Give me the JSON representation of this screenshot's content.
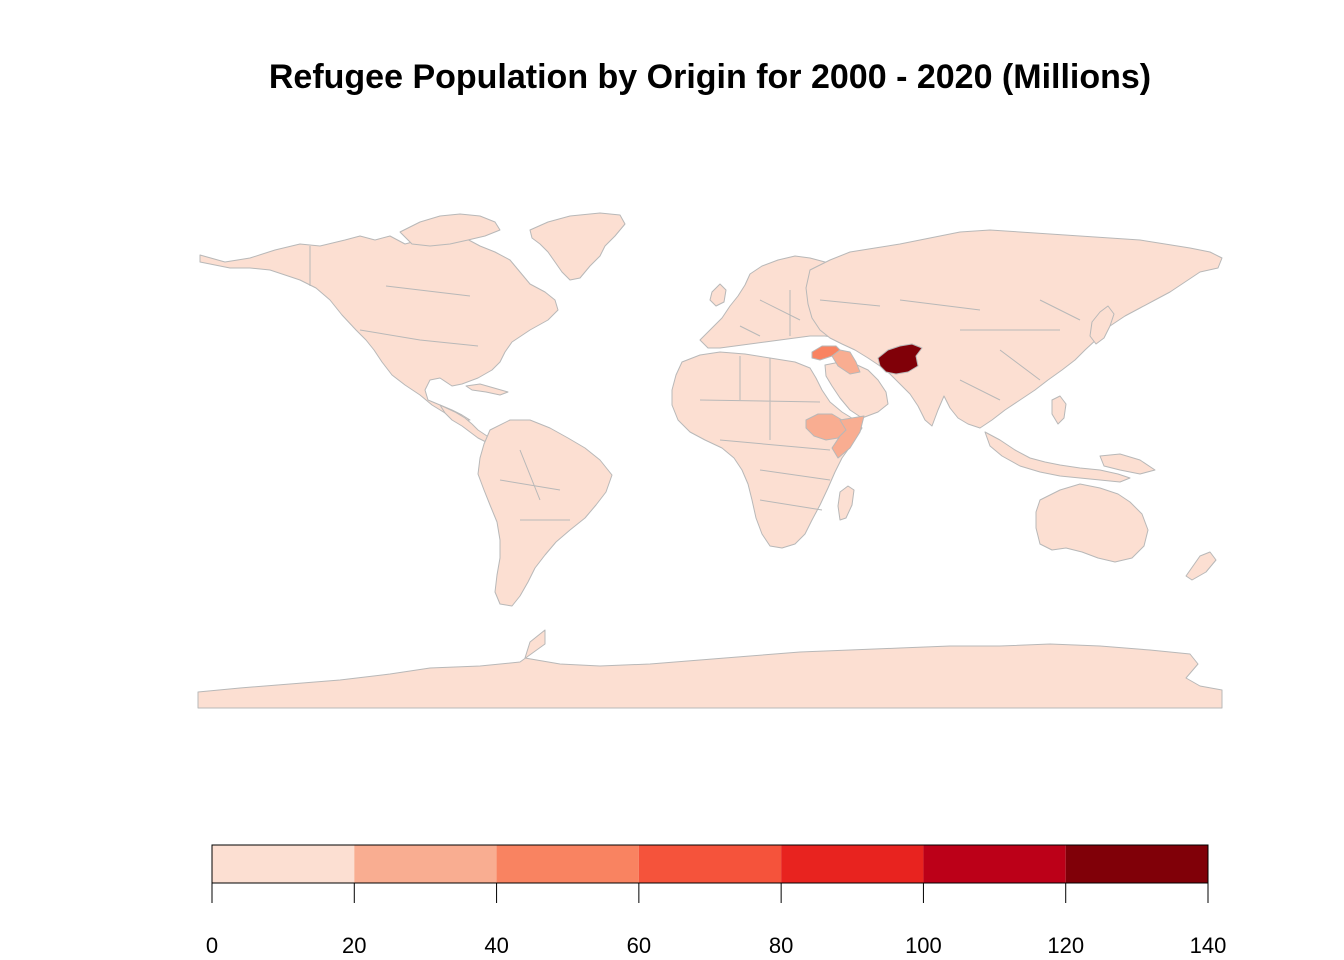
{
  "title": "Refugee Population by Origin for 2000 - 2020 (Millions)",
  "map": {
    "base_color": "#fcdfd2",
    "border_color": "#b8b8b8",
    "highlighted_regions": [
      {
        "name": "Afghanistan",
        "bin": "120-140",
        "color": "#800008"
      },
      {
        "name": "Syria",
        "bin": "40-60",
        "color": "#f98361"
      },
      {
        "name": "Iraq",
        "bin": "20-40",
        "color": "#f9ad91"
      },
      {
        "name": "Ethiopia",
        "bin": "20-40",
        "color": "#f9ad91"
      },
      {
        "name": "Somalia",
        "bin": "20-40",
        "color": "#f9ad91"
      }
    ]
  },
  "legend": {
    "breaks": [
      0,
      20,
      40,
      60,
      80,
      100,
      120,
      140
    ],
    "tick_labels": [
      "0",
      "20",
      "40",
      "60",
      "80",
      "100",
      "120",
      "140"
    ],
    "colors": [
      "#fcdfd2",
      "#f9ad91",
      "#f98361",
      "#f5533b",
      "#e8231f",
      "#bc0018",
      "#800008"
    ]
  }
}
